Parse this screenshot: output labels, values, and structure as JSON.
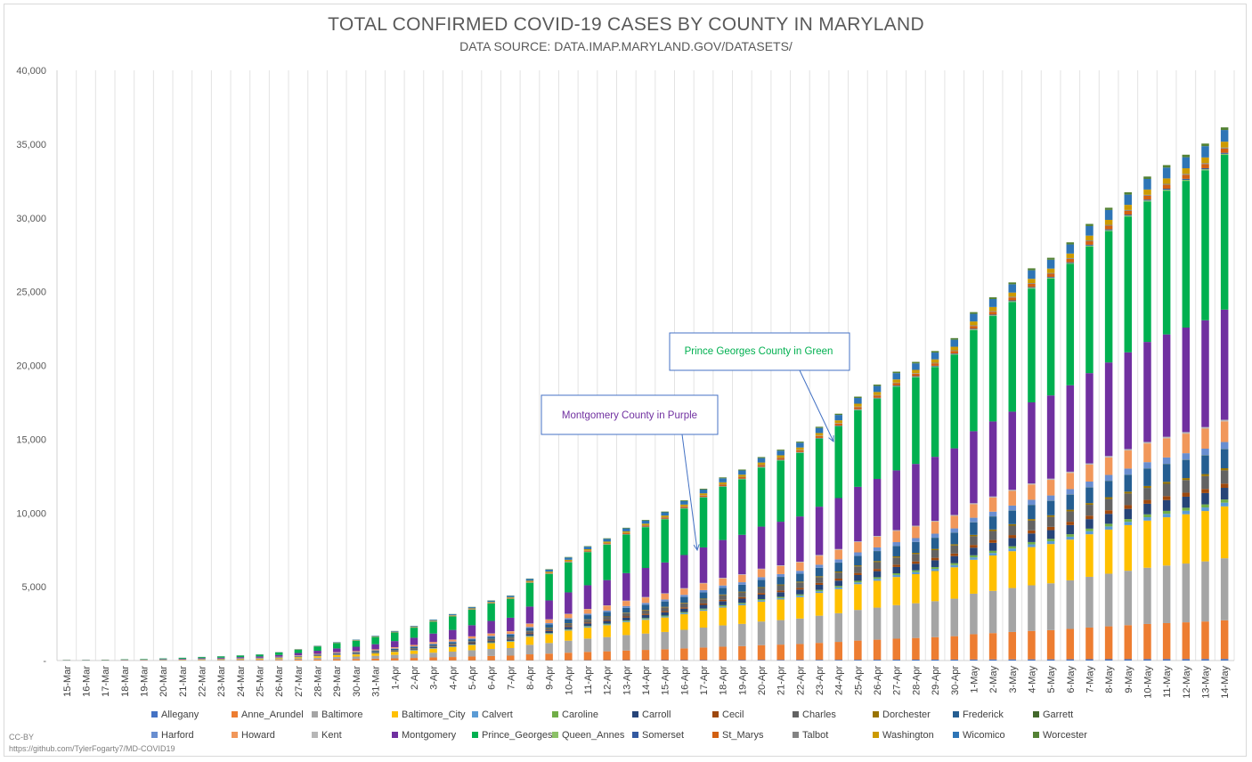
{
  "chart_data": {
    "type": "bar",
    "stacked": true,
    "title": "TOTAL CONFIRMED COVID-19 CASES BY COUNTY IN MARYLAND",
    "subtitle": "DATA SOURCE: DATA.IMAP.MARYLAND.GOV/DATASETS/",
    "ylim": [
      0,
      40000
    ],
    "yticks": [
      "-",
      "5,000",
      "10,000",
      "15,000",
      "20,000",
      "25,000",
      "30,000",
      "35,000",
      "40,000"
    ],
    "grid": "vertical",
    "legend_position": "bottom",
    "categories": [
      "15-Mar",
      "16-Mar",
      "17-Mar",
      "18-Mar",
      "19-Mar",
      "20-Mar",
      "21-Mar",
      "22-Mar",
      "23-Mar",
      "24-Mar",
      "25-Mar",
      "26-Mar",
      "27-Mar",
      "28-Mar",
      "29-Mar",
      "30-Mar",
      "31-Mar",
      "1-Apr",
      "2-Apr",
      "3-Apr",
      "4-Apr",
      "5-Apr",
      "6-Apr",
      "7-Apr",
      "8-Apr",
      "9-Apr",
      "10-Apr",
      "11-Apr",
      "12-Apr",
      "13-Apr",
      "14-Apr",
      "15-Apr",
      "16-Apr",
      "17-Apr",
      "18-Apr",
      "19-Apr",
      "20-Apr",
      "21-Apr",
      "22-Apr",
      "23-Apr",
      "24-Apr",
      "25-Apr",
      "26-Apr",
      "27-Apr",
      "28-Apr",
      "29-Apr",
      "30-Apr",
      "1-May",
      "2-May",
      "3-May",
      "4-May",
      "5-May",
      "6-May",
      "7-May",
      "8-May",
      "9-May",
      "10-May",
      "11-May",
      "12-May",
      "13-May",
      "14-May"
    ],
    "totals": [
      40,
      45,
      55,
      85,
      105,
      150,
      190,
      245,
      290,
      350,
      420,
      570,
      770,
      1000,
      1240,
      1410,
      1670,
      1990,
      2330,
      2760,
      3130,
      3610,
      4050,
      4380,
      5520,
      6150,
      6970,
      7700,
      8230,
      8940,
      9470,
      10030,
      10790,
      11570,
      12330,
      12860,
      13700,
      14200,
      14740,
      15740,
      16620,
      17770,
      18580,
      19450,
      20110,
      20840,
      21710,
      23460,
      24460,
      25460,
      26410,
      27120,
      28160,
      29400,
      30490,
      31530,
      32590,
      33360,
      34060,
      34810,
      35900
    ],
    "series_colors": {
      "Allegany": "#4472c4",
      "Anne_Arundel": "#ed7d31",
      "Baltimore": "#a5a5a5",
      "Baltimore_City": "#ffc000",
      "Calvert": "#5b9bd5",
      "Caroline": "#70ad47",
      "Carroll": "#264478",
      "Cecil": "#9e480e",
      "Charles": "#636363",
      "Dorchester": "#997300",
      "Frederick": "#255e91",
      "Garrett": "#43682b",
      "Harford": "#698ed0",
      "Howard": "#f1975a",
      "Kent": "#b7b7b7",
      "Montgomery": "#7030a0",
      "Prince_Georges": "#00b050",
      "Queen_Annes": "#8cc168",
      "Somerset": "#335aa1",
      "St_Marys": "#d26012",
      "Talbot": "#848484",
      "Washington": "#cc9a00",
      "Wicomico": "#2e75b6",
      "Worcester": "#548235"
    },
    "stack_shares": {
      "Allegany": 0.003,
      "Anne_Arundel": 0.073,
      "Baltimore": 0.117,
      "Baltimore_City": 0.098,
      "Calvert": 0.007,
      "Caroline": 0.006,
      "Carroll": 0.022,
      "Cecil": 0.008,
      "Charles": 0.025,
      "Dorchester": 0.004,
      "Frederick": 0.036,
      "Garrett": 0.0005,
      "Harford": 0.013,
      "Howard": 0.039,
      "Kent": 0.003,
      "Montgomery": 0.208,
      "Prince_Georges": 0.292,
      "Queen_Annes": 0.002,
      "Somerset": 0.002,
      "St_Marys": 0.008,
      "Talbot": 0.002,
      "Washington": 0.011,
      "Wicomico": 0.022,
      "Worcester": 0.005
    },
    "legend": [
      "Allegany",
      "Anne_Arundel",
      "Baltimore",
      "Baltimore_City",
      "Calvert",
      "Caroline",
      "Carroll",
      "Cecil",
      "Charles",
      "Dorchester",
      "Frederick",
      "Garrett",
      "Harford",
      "Howard",
      "Kent",
      "Montgomery",
      "Prince_Georges",
      "Queen_Annes",
      "Somerset",
      "St_Marys",
      "Talbot",
      "Washington",
      "Wicomico",
      "Worcester"
    ],
    "annotations": [
      {
        "text": "Prince Georges County in Green",
        "color": "#00b050",
        "points_to": "24-Apr"
      },
      {
        "text": "Montgomery County in Purple",
        "color": "#7030a0",
        "points_to": "17-Apr"
      }
    ]
  },
  "footer": {
    "license": "CC-BY",
    "source_url": "https://github.com/TylerFogarty7/MD-COVID19"
  }
}
